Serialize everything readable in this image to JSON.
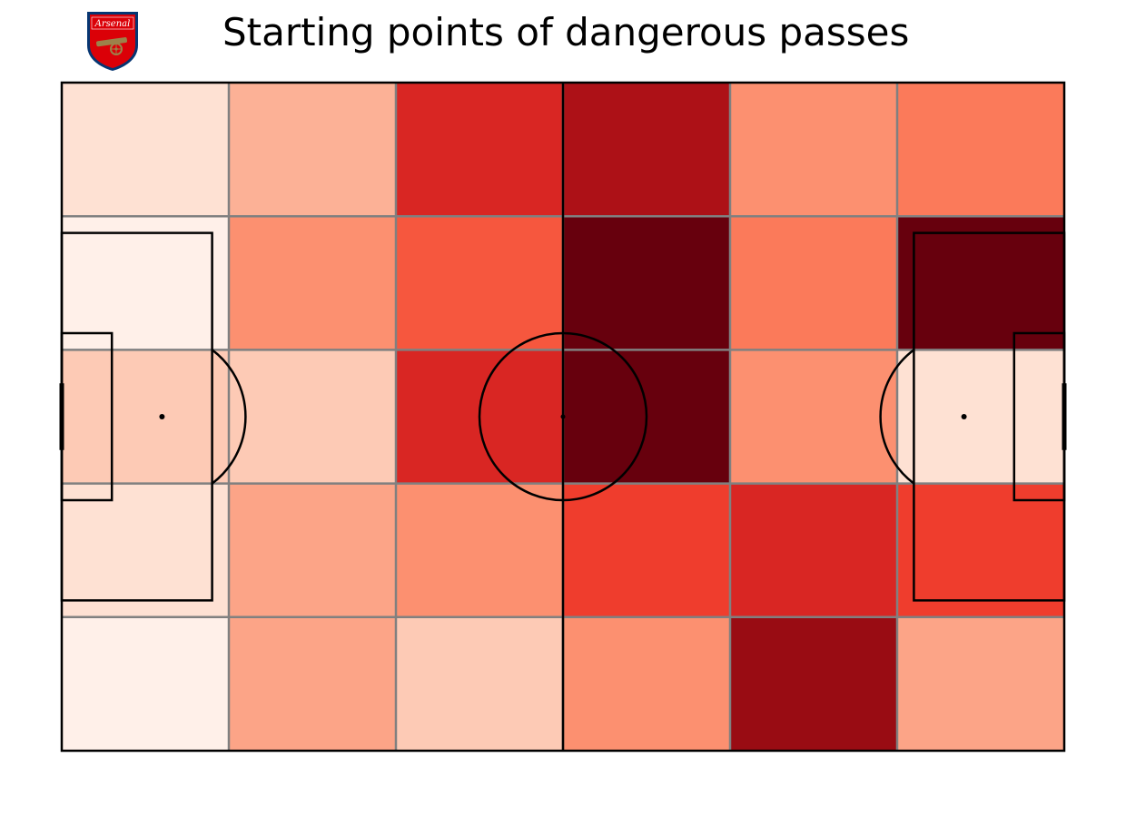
{
  "chart_data": {
    "type": "heatmap",
    "title": "Starting points of dangerous passes",
    "logo_text": "Arsenal",
    "colormap": "Reds",
    "grid": {
      "columns": 6,
      "rows": 5
    },
    "values_normalized": [
      [
        0.12,
        0.28,
        0.7,
        0.85,
        0.38,
        0.45
      ],
      [
        0.03,
        0.38,
        0.55,
        1.0,
        0.45,
        1.0
      ],
      [
        0.2,
        0.2,
        0.7,
        1.0,
        0.38,
        0.12
      ],
      [
        0.12,
        0.32,
        0.38,
        0.62,
        0.7,
        0.62
      ],
      [
        0.03,
        0.32,
        0.2,
        0.38,
        0.9,
        0.32
      ]
    ],
    "colors": {
      "pitch_lines": "#000000",
      "grid_lines": "#808080",
      "background": "#ffffff",
      "crest_red": "#DB0007",
      "crest_navy": "#063672",
      "crest_gold": "#9C824A"
    }
  }
}
